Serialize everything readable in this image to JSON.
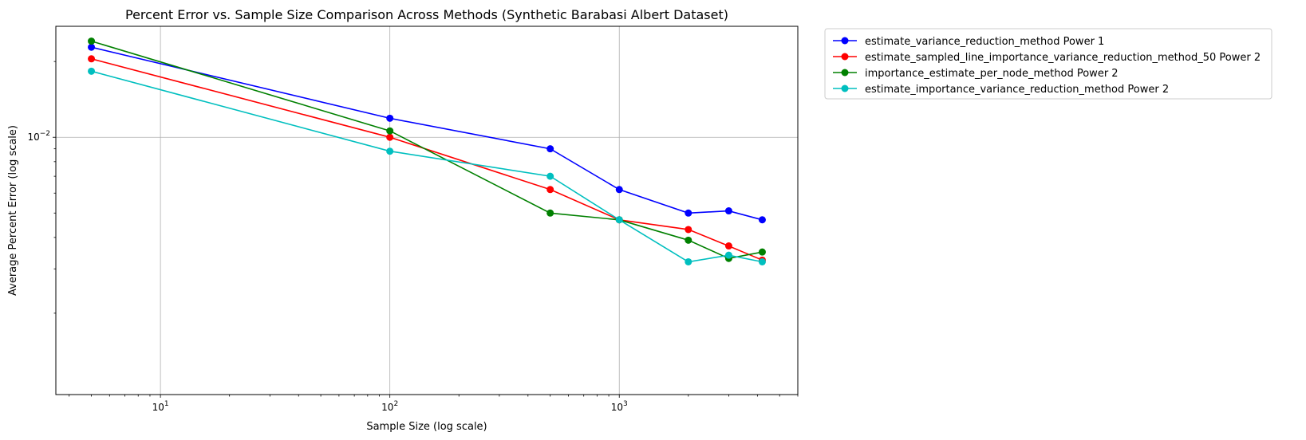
{
  "chart_data": {
    "type": "line",
    "title": "Percent Error vs. Sample Size Comparison Across Methods (Synthetic Barabasi Albert Dataset)",
    "xlabel": "Sample Size (log scale)",
    "ylabel": "Average Percent Error (log scale)",
    "xscale": "log",
    "yscale": "log",
    "xlim": [
      3.5,
      6000
    ],
    "ylim": [
      0.00095,
      0.0276
    ],
    "x_ticks": [
      {
        "value": 10,
        "base": "10",
        "exp": "1"
      },
      {
        "value": 100,
        "base": "10",
        "exp": "2"
      },
      {
        "value": 1000,
        "base": "10",
        "exp": "3"
      }
    ],
    "y_ticks": [
      {
        "value": 0.01,
        "base": "10",
        "exp": "−2"
      }
    ],
    "grid": true,
    "legend_position": "outside-top-right",
    "series": [
      {
        "name": "estimate_variance_reduction_method Power 1",
        "color": "#0000ff",
        "x": [
          5,
          100,
          500,
          1000,
          2000,
          3000,
          4200
        ],
        "y": [
          0.0228,
          0.0119,
          0.009,
          0.0062,
          0.005,
          0.0051,
          0.0047
        ]
      },
      {
        "name": "estimate_sampled_line_importance_variance_reduction_method_50 Power 2",
        "color": "#ff0000",
        "x": [
          5,
          100,
          500,
          1000,
          2000,
          3000,
          4200
        ],
        "y": [
          0.0205,
          0.01,
          0.0062,
          0.0047,
          0.0043,
          0.0037,
          0.00325
        ]
      },
      {
        "name": "importance_estimate_per_node_method Power 2",
        "color": "#008000",
        "x": [
          5,
          100,
          500,
          1000,
          2000,
          3000,
          4200
        ],
        "y": [
          0.0241,
          0.0106,
          0.005,
          0.0047,
          0.0039,
          0.0033,
          0.0035
        ]
      },
      {
        "name": "estimate_importance_variance_reduction_method Power 2",
        "color": "#00bfbf",
        "x": [
          5,
          100,
          500,
          1000,
          2000,
          3000,
          4200
        ],
        "y": [
          0.0183,
          0.0088,
          0.007,
          0.0047,
          0.0032,
          0.0034,
          0.0032
        ]
      }
    ]
  }
}
